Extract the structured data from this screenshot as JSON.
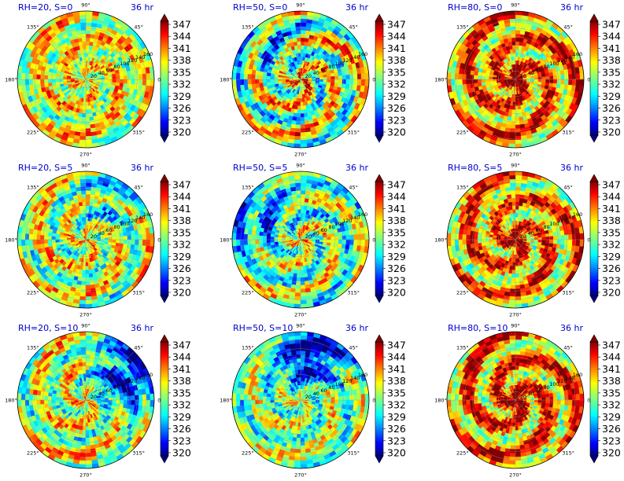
{
  "figure": {
    "panel_time": "36 hr",
    "colorbar_ticks": [
      "347",
      "344",
      "341",
      "338",
      "335",
      "332",
      "329",
      "326",
      "323",
      "320"
    ]
  },
  "chart_data": [
    {
      "type": "heatmap",
      "projection": "polar",
      "title_left": "RH=20, S=0",
      "title_right": "36 hr",
      "angle_labels": [
        "0°",
        "45°",
        "90°",
        "135°",
        "180°",
        "225°",
        "270°",
        "315°"
      ],
      "radius_labels": [
        "20",
        "40",
        "60",
        "80",
        "100",
        "120",
        "140",
        "160"
      ],
      "colorbar": {
        "min": 320,
        "max": 347,
        "ticks": [
          347,
          344,
          341,
          338,
          335,
          332,
          329,
          326,
          323,
          320
        ]
      },
      "pattern": "mixed, no organized core"
    },
    {
      "type": "heatmap",
      "projection": "polar",
      "title_left": "RH=50, S=0",
      "title_right": "36 hr",
      "angle_labels": [
        "0°",
        "45°",
        "90°",
        "135°",
        "180°",
        "225°",
        "270°",
        "315°"
      ],
      "radius_labels": [
        "20",
        "40",
        "60",
        "80",
        "100",
        "120",
        "140",
        "160"
      ],
      "colorbar": {
        "min": 320,
        "max": 347,
        "ticks": [
          347,
          344,
          341,
          338,
          335,
          332,
          329,
          326,
          323,
          320
        ]
      },
      "pattern": "weak spiral bands"
    },
    {
      "type": "heatmap",
      "projection": "polar",
      "title_left": "RH=80, S=0",
      "title_right": "36 hr",
      "angle_labels": [
        "0°",
        "45°",
        "90°",
        "135°",
        "180°",
        "225°",
        "270°",
        "315°"
      ],
      "radius_labels": [
        "20",
        "40",
        "60",
        "80",
        "100",
        "120",
        "140",
        "160"
      ],
      "colorbar": {
        "min": 320,
        "max": 347,
        "ticks": [
          347,
          344,
          341,
          338,
          335,
          332,
          329,
          326,
          323,
          320
        ]
      },
      "pattern": "strong warm core with spiral bands"
    },
    {
      "type": "heatmap",
      "projection": "polar",
      "title_left": "RH=20, S=5",
      "title_right": "36 hr",
      "angle_labels": [
        "0°",
        "45°",
        "90°",
        "135°",
        "180°",
        "225°",
        "270°",
        "315°"
      ],
      "radius_labels": [
        "20",
        "40",
        "60",
        "80",
        "100",
        "120",
        "140",
        "160"
      ],
      "colorbar": {
        "min": 320,
        "max": 347,
        "ticks": [
          347,
          344,
          341,
          338,
          335,
          332,
          329,
          326,
          323,
          320
        ]
      },
      "pattern": "mixed, warm bands to southwest"
    },
    {
      "type": "heatmap",
      "projection": "polar",
      "title_left": "RH=50, S=5",
      "title_right": "36 hr",
      "angle_labels": [
        "0°",
        "45°",
        "90°",
        "135°",
        "180°",
        "225°",
        "270°",
        "315°"
      ],
      "radius_labels": [
        "20",
        "40",
        "60",
        "80",
        "100",
        "120",
        "140",
        "160"
      ],
      "colorbar": {
        "min": 320,
        "max": 347,
        "ticks": [
          347,
          344,
          341,
          338,
          335,
          332,
          329,
          326,
          323,
          320
        ]
      },
      "pattern": "cool northwest sector, warm bands east"
    },
    {
      "type": "heatmap",
      "projection": "polar",
      "title_left": "RH=80, S=5",
      "title_right": "36 hr",
      "angle_labels": [
        "0°",
        "45°",
        "90°",
        "135°",
        "180°",
        "225°",
        "270°",
        "315°"
      ],
      "radius_labels": [
        "20",
        "40",
        "60",
        "80",
        "100",
        "120",
        "140",
        "160"
      ],
      "colorbar": {
        "min": 320,
        "max": 347,
        "ticks": [
          347,
          344,
          341,
          338,
          335,
          332,
          329,
          326,
          323,
          320
        ]
      },
      "pattern": "warm core with spiral bands"
    },
    {
      "type": "heatmap",
      "projection": "polar",
      "title_left": "RH=20, S=10",
      "title_right": "36 hr",
      "angle_labels": [
        "0°",
        "45°",
        "90°",
        "135°",
        "180°",
        "225°",
        "270°",
        "315°"
      ],
      "radius_labels": [
        "20",
        "40",
        "60",
        "80",
        "100",
        "120",
        "140",
        "160"
      ],
      "colorbar": {
        "min": 320,
        "max": 347,
        "ticks": [
          347,
          344,
          341,
          338,
          335,
          332,
          329,
          326,
          323,
          320
        ]
      },
      "pattern": "very cool northeast sector"
    },
    {
      "type": "heatmap",
      "projection": "polar",
      "title_left": "RH=50, S=10",
      "title_right": "36 hr",
      "angle_labels": [
        "0°",
        "45°",
        "90°",
        "135°",
        "180°",
        "225°",
        "270°",
        "315°"
      ],
      "radius_labels": [
        "20",
        "40",
        "60",
        "80",
        "100",
        "120",
        "140",
        "160"
      ],
      "colorbar": {
        "min": 320,
        "max": 347,
        "ticks": [
          347,
          344,
          341,
          338,
          335,
          332,
          329,
          326,
          323,
          320
        ]
      },
      "pattern": "very cool north sector"
    },
    {
      "type": "heatmap",
      "projection": "polar",
      "title_left": "RH=80, S=10",
      "title_right": "36 hr",
      "angle_labels": [
        "0°",
        "45°",
        "90°",
        "135°",
        "180°",
        "225°",
        "270°",
        "315°"
      ],
      "radius_labels": [
        "20",
        "40",
        "60",
        "80",
        "100",
        "120",
        "140",
        "160"
      ],
      "colorbar": {
        "min": 320,
        "max": 347,
        "ticks": [
          347,
          344,
          341,
          338,
          335,
          332,
          329,
          326,
          323,
          320
        ]
      },
      "pattern": "strong warm core with spiral bands"
    }
  ]
}
